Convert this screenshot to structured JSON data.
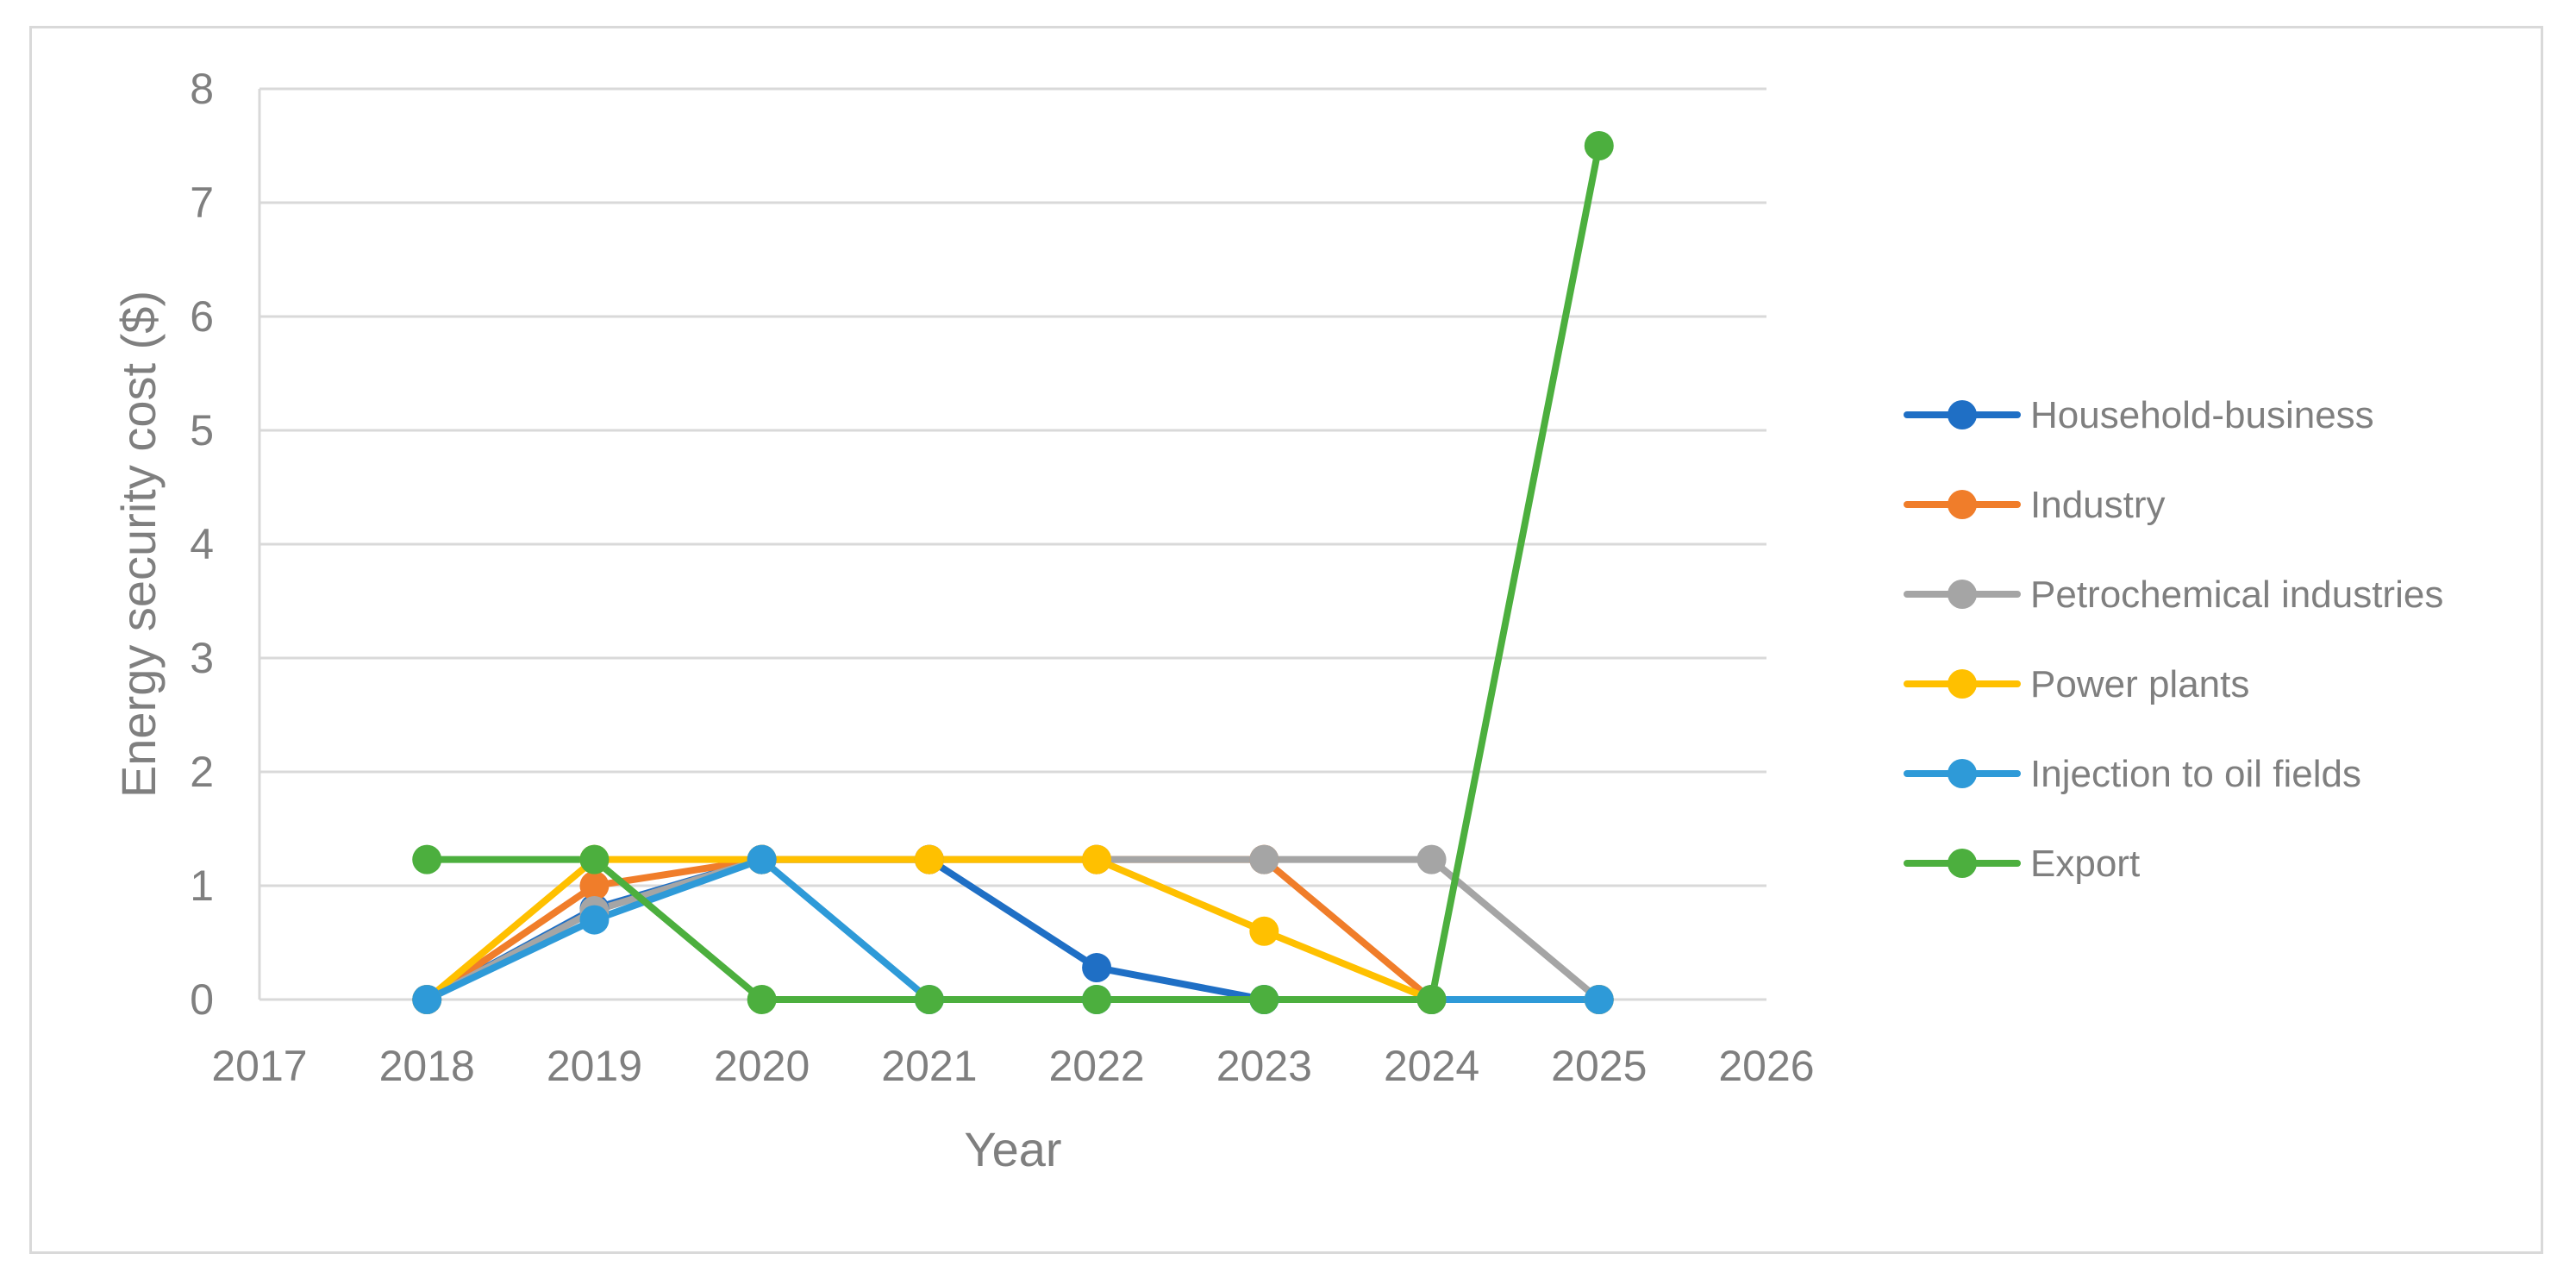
{
  "chart_data": {
    "type": "line",
    "xlabel": "Year",
    "ylabel": "Energy security cost ($)",
    "xlim": [
      2017,
      2026
    ],
    "ylim": [
      0,
      8
    ],
    "x_ticks": [
      2017,
      2018,
      2019,
      2020,
      2021,
      2022,
      2023,
      2024,
      2025,
      2026
    ],
    "y_ticks": [
      0,
      1,
      2,
      3,
      4,
      5,
      6,
      7,
      8
    ],
    "grid": "horizontal",
    "legend_position": "right",
    "x": [
      2018,
      2019,
      2020,
      2021,
      2022,
      2023,
      2024,
      2025
    ],
    "series": [
      {
        "name": "Household-business",
        "color": "#1f6fc5",
        "values": [
          0,
          0.8,
          1.23,
          1.23,
          0.28,
          0,
          0,
          0
        ]
      },
      {
        "name": "Industry",
        "color": "#f07d2a",
        "values": [
          0,
          1.0,
          1.23,
          1.23,
          1.23,
          1.23,
          0,
          0
        ]
      },
      {
        "name": "Petrochemical industries",
        "color": "#a5a5a5",
        "values": [
          0,
          0.78,
          1.23,
          1.23,
          1.23,
          1.23,
          1.23,
          0
        ]
      },
      {
        "name": "Power plants",
        "color": "#ffc000",
        "values": [
          0,
          1.23,
          1.23,
          1.23,
          1.23,
          0.6,
          0,
          0
        ]
      },
      {
        "name": "Injection to oil fields",
        "color": "#2e9ad8",
        "values": [
          0,
          0.7,
          1.23,
          0,
          0,
          0,
          0,
          0
        ]
      },
      {
        "name": "Export",
        "color": "#4caf3e",
        "values": [
          1.23,
          1.23,
          0,
          0,
          0,
          0,
          0,
          7.5
        ]
      }
    ]
  }
}
